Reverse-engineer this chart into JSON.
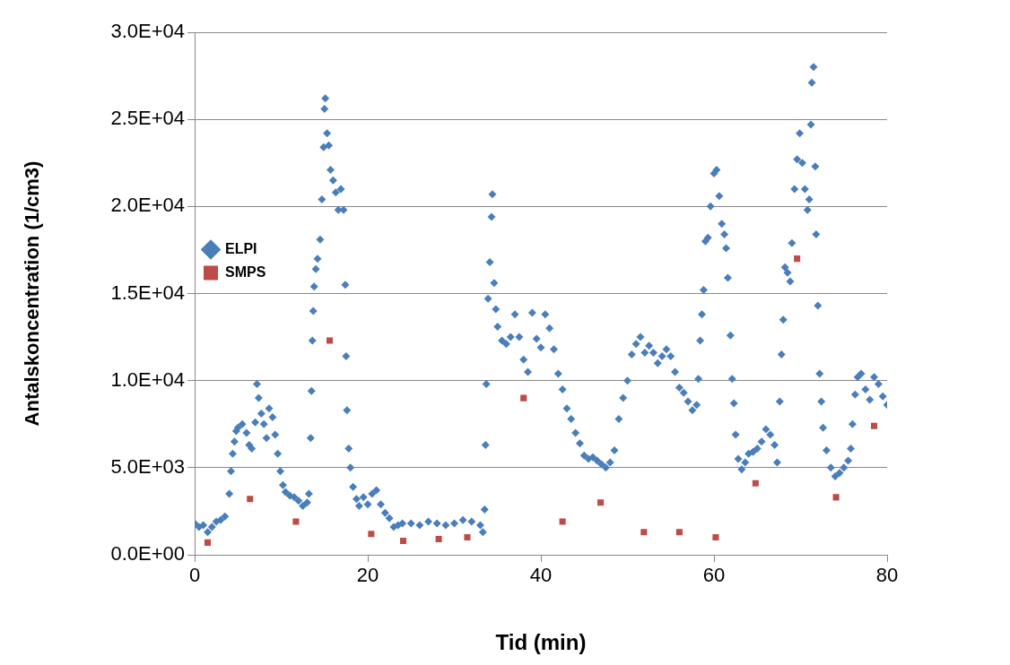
{
  "chart_data": {
    "type": "scatter",
    "xlabel": "Tid (min)",
    "ylabel": "Antalskoncentration (1/cm3)",
    "xlim": [
      0,
      80
    ],
    "xticks": [
      0,
      20,
      40,
      60,
      80
    ],
    "ylim": [
      0,
      30000
    ],
    "yticks": [
      {
        "value": 0,
        "label": "0.0E+00"
      },
      {
        "value": 5000,
        "label": "5.0E+03"
      },
      {
        "value": 10000,
        "label": "1.0E+04"
      },
      {
        "value": 15000,
        "label": "1.5E+04"
      },
      {
        "value": 20000,
        "label": "2.0E+04"
      },
      {
        "value": 25000,
        "label": "2.5E+04"
      },
      {
        "value": 30000,
        "label": "3.0E+04"
      }
    ],
    "grid": "y",
    "legend": "top",
    "series": [
      {
        "name": "ELPI",
        "color": "#4a7ebb",
        "marker": "diamond",
        "x": [
          0,
          0.5,
          1,
          1.5,
          2,
          2.5,
          3,
          3.5,
          4,
          4.2,
          4.4,
          4.6,
          4.8,
          5,
          5.5,
          6,
          6.3,
          6.6,
          7,
          7.2,
          7.4,
          7.7,
          8,
          8.3,
          8.6,
          9,
          9.3,
          9.6,
          9.9,
          10.2,
          10.5,
          11,
          11.5,
          12,
          12.5,
          13,
          13.2,
          13.4,
          13.5,
          13.6,
          13.7,
          13.8,
          14,
          14.2,
          14.5,
          14.7,
          14.9,
          15,
          15.1,
          15.3,
          15.5,
          15.7,
          16,
          16.3,
          16.6,
          16.9,
          17.2,
          17.4,
          17.5,
          17.6,
          17.8,
          18,
          18.3,
          18.7,
          19,
          19.5,
          20,
          20.5,
          21,
          21.5,
          22,
          22.5,
          23,
          23.5,
          24,
          25,
          26,
          27,
          28,
          29,
          30,
          31,
          32,
          33,
          33.3,
          33.5,
          33.6,
          33.7,
          33.9,
          34.1,
          34.3,
          34.4,
          34.6,
          34.8,
          35,
          35.5,
          36,
          36.5,
          37,
          37.5,
          38,
          38.5,
          39,
          39.5,
          40,
          40.5,
          41,
          41.5,
          42,
          42.5,
          43,
          43.5,
          44,
          44.5,
          45,
          45.5,
          46,
          46.5,
          47,
          47.5,
          48,
          48.5,
          49,
          49.5,
          50,
          50.5,
          51,
          51.5,
          52,
          52.5,
          53,
          53.5,
          54,
          54.5,
          55,
          55.5,
          56,
          56.5,
          57,
          57.5,
          58,
          58.2,
          58.4,
          58.6,
          58.8,
          59,
          59.3,
          59.6,
          60,
          60.3,
          60.6,
          60.9,
          61.2,
          61.4,
          61.6,
          61.9,
          62.1,
          62.3,
          62.5,
          62.8,
          63.2,
          63.6,
          64,
          64.5,
          65,
          65.5,
          66,
          66.5,
          67,
          67.3,
          67.6,
          67.8,
          68,
          68.2,
          68.5,
          68.8,
          69,
          69.3,
          69.6,
          69.9,
          70.2,
          70.5,
          70.8,
          71,
          71.2,
          71.3,
          71.5,
          71.7,
          71.8,
          72,
          72.2,
          72.4,
          72.6,
          73,
          73.5,
          74,
          74.5,
          75,
          75.5,
          75.8,
          76,
          76.3,
          76.6,
          77,
          77.5,
          78,
          78.5,
          79,
          79.5,
          80
        ],
        "values": [
          1800,
          1600,
          1700,
          1300,
          1600,
          1900,
          2000,
          2200,
          3500,
          4800,
          5800,
          6500,
          7100,
          7300,
          7500,
          7000,
          6300,
          6100,
          7600,
          9800,
          9000,
          8100,
          7500,
          6700,
          8400,
          7900,
          6900,
          5800,
          4800,
          4000,
          3600,
          3400,
          3300,
          3100,
          2800,
          3000,
          3500,
          6700,
          9400,
          12300,
          14000,
          15400,
          16400,
          17000,
          18100,
          20400,
          23400,
          25600,
          26200,
          24200,
          23500,
          22100,
          21500,
          20800,
          19800,
          21000,
          19800,
          15500,
          11400,
          8300,
          6100,
          5000,
          3900,
          3200,
          2800,
          3300,
          2900,
          3500,
          3700,
          2900,
          2400,
          2100,
          1600,
          1700,
          1800,
          1800,
          1700,
          1900,
          1800,
          1700,
          1800,
          2000,
          1900,
          1700,
          1300,
          2600,
          6300,
          9800,
          14700,
          16800,
          19400,
          20700,
          15600,
          14100,
          13100,
          12300,
          12100,
          12500,
          13800,
          12500,
          11200,
          10500,
          13900,
          12400,
          11900,
          13800,
          13000,
          11800,
          10400,
          9500,
          8400,
          7800,
          7000,
          6400,
          5700,
          5500,
          5600,
          5400,
          5200,
          5000,
          5300,
          6000,
          7800,
          9000,
          10000,
          11500,
          12100,
          12500,
          11600,
          12000,
          11600,
          11000,
          11400,
          11800,
          11400,
          10500,
          9600,
          9300,
          8800,
          8300,
          8600,
          10100,
          12300,
          13800,
          15200,
          18000,
          18200,
          20000,
          21900,
          22100,
          20600,
          19000,
          18400,
          17600,
          15900,
          12600,
          10100,
          8700,
          6900,
          5500,
          4900,
          5300,
          5800,
          5900,
          6100,
          6500,
          7200,
          6900,
          6300,
          5300,
          8800,
          11500,
          13500,
          16500,
          16200,
          15700,
          17900,
          21000,
          22700,
          24200,
          22500,
          21000,
          19800,
          20400,
          24700,
          27100,
          28000,
          22300,
          18400,
          14300,
          10400,
          8800,
          7300,
          6000,
          5000,
          4500,
          4700,
          5000,
          5400,
          6100,
          7500,
          9200,
          10200,
          10400,
          9500,
          8900,
          10200,
          9800,
          9100,
          8600
        ]
      },
      {
        "name": "SMPS",
        "color": "#be4b48",
        "marker": "square",
        "x": [
          1.5,
          6.4,
          11.7,
          15.6,
          20.4,
          24.1,
          28.2,
          31.5,
          38,
          42.5,
          46.9,
          51.9,
          56,
          60.2,
          64.8,
          69.6,
          74.1,
          78.5
        ],
        "values": [
          700,
          3200,
          1900,
          12300,
          1200,
          800,
          900,
          1000,
          9000,
          1900,
          3000,
          1300,
          1300,
          1000,
          4100,
          17000,
          3300,
          7400
        ]
      }
    ]
  }
}
